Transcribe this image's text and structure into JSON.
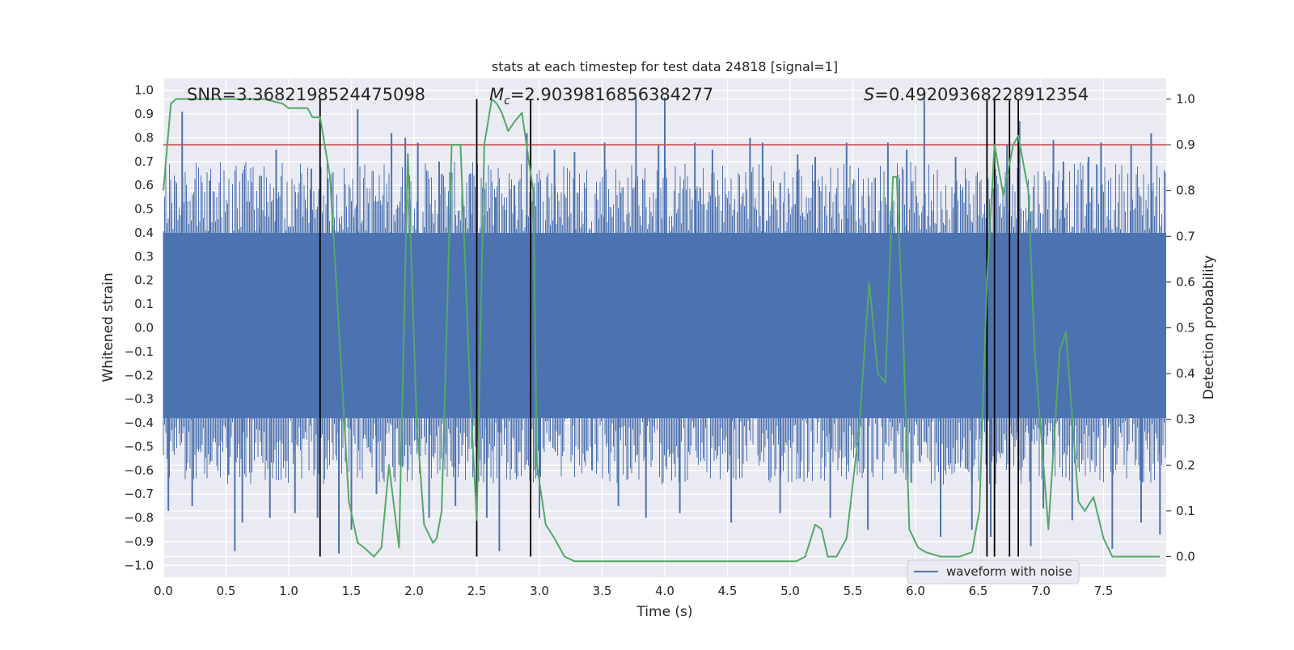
{
  "chart_data": {
    "type": "line",
    "title": "stats at each timestep for test data 24818 [signal=1]",
    "xlabel": "Time (s)",
    "ylabel_left": "Whitened strain",
    "ylabel_right": "Detection probability",
    "xlim": [
      0,
      8
    ],
    "ylim_left": [
      -1.05,
      1.05
    ],
    "ylim_right": [
      -0.045,
      1.045
    ],
    "x_ticks": [
      "0.0",
      "0.5",
      "1.0",
      "1.5",
      "2.0",
      "2.5",
      "3.0",
      "3.5",
      "4.0",
      "4.5",
      "5.0",
      "5.5",
      "6.0",
      "6.5",
      "7.0",
      "7.5"
    ],
    "y_ticks_left": [
      "1.0",
      "0.9",
      "0.8",
      "0.7",
      "0.6",
      "0.5",
      "0.4",
      "0.3",
      "0.2",
      "0.1",
      "0.0",
      "−0.1",
      "−0.2",
      "−0.3",
      "−0.4",
      "−0.5",
      "−0.6",
      "−0.7",
      "−0.8",
      "−0.9",
      "−1.0"
    ],
    "y_ticks_right": [
      "1.0",
      "0.9",
      "0.8",
      "0.7",
      "0.6",
      "0.5",
      "0.4",
      "0.3",
      "0.2",
      "0.1",
      "0.0"
    ],
    "grid": true,
    "legend": {
      "position": "lower-right",
      "entries": [
        "waveform with noise"
      ]
    },
    "annotations": {
      "snr": "SNR=3.3682198524475098",
      "mc": "=2.9039816856384277",
      "mc_symbol": "M",
      "mc_sub": "c",
      "s": "=0.49209368228912354",
      "s_symbol": "S"
    },
    "threshold": {
      "value": 0.9,
      "axis": "right",
      "color": "#c44e52"
    },
    "vertical_markers": [
      1.25,
      2.5,
      2.93,
      6.57,
      6.63,
      6.75,
      6.82
    ],
    "waveform": {
      "name": "waveform with noise",
      "color": "#4c72b0",
      "dense_band": [
        -0.38,
        0.4
      ],
      "spikes": [
        [
          0.04,
          -0.77
        ],
        [
          0.15,
          0.91
        ],
        [
          0.23,
          -0.75
        ],
        [
          0.37,
          0.62
        ],
        [
          0.52,
          -0.62
        ],
        [
          0.57,
          -0.94
        ],
        [
          0.63,
          -0.82
        ],
        [
          0.77,
          0.64
        ],
        [
          0.85,
          -0.8
        ],
        [
          0.9,
          0.75
        ],
        [
          1.05,
          -0.78
        ],
        [
          1.18,
          0.67
        ],
        [
          1.23,
          -0.8
        ],
        [
          1.31,
          0.63
        ],
        [
          1.4,
          -0.95
        ],
        [
          1.5,
          -0.85
        ],
        [
          1.55,
          0.92
        ],
        [
          1.7,
          -0.7
        ],
        [
          1.82,
          0.82
        ],
        [
          1.93,
          0.8
        ],
        [
          2.03,
          0.78
        ],
        [
          2.12,
          -0.8
        ],
        [
          2.2,
          0.7
        ],
        [
          2.33,
          -0.75
        ],
        [
          2.45,
          0.65
        ],
        [
          2.58,
          -0.8
        ],
        [
          2.65,
          0.55
        ],
        [
          2.68,
          -0.94
        ],
        [
          2.8,
          0.6
        ],
        [
          2.9,
          0.82
        ],
        [
          3.0,
          -0.8
        ],
        [
          3.12,
          0.75
        ],
        [
          3.28,
          0.74
        ],
        [
          3.42,
          -0.6
        ],
        [
          3.52,
          0.78
        ],
        [
          3.63,
          -0.75
        ],
        [
          3.77,
          0.97
        ],
        [
          3.85,
          -0.8
        ],
        [
          3.95,
          0.77
        ],
        [
          4.0,
          0.97
        ],
        [
          4.12,
          -0.78
        ],
        [
          4.24,
          0.78
        ],
        [
          4.38,
          0.75
        ],
        [
          4.53,
          -0.82
        ],
        [
          4.68,
          0.8
        ],
        [
          4.78,
          0.78
        ],
        [
          4.92,
          -0.78
        ],
        [
          5.06,
          0.73
        ],
        [
          5.2,
          0.72
        ],
        [
          5.32,
          -0.8
        ],
        [
          5.45,
          0.78
        ],
        [
          5.62,
          -0.85
        ],
        [
          5.78,
          0.78
        ],
        [
          5.93,
          0.75
        ],
        [
          6.07,
          0.97
        ],
        [
          6.2,
          -0.88
        ],
        [
          6.32,
          0.72
        ],
        [
          6.45,
          -0.85
        ],
        [
          6.6,
          -0.88
        ],
        [
          6.73,
          0.77
        ],
        [
          6.83,
          0.87
        ],
        [
          6.92,
          -0.92
        ],
        [
          7.02,
          -0.76
        ],
        [
          7.1,
          0.79
        ],
        [
          7.18,
          0.7
        ],
        [
          7.25,
          -0.81
        ],
        [
          7.38,
          0.72
        ],
        [
          7.48,
          0.78
        ],
        [
          7.57,
          -0.93
        ],
        [
          7.72,
          0.77
        ],
        [
          7.8,
          -0.82
        ],
        [
          7.88,
          0.82
        ],
        [
          7.95,
          -0.87
        ]
      ]
    },
    "probability": {
      "name": "detection probability",
      "color": "#55a868",
      "x": [
        0,
        0.06,
        0.1,
        0.3,
        0.5,
        0.8,
        0.95,
        1.0,
        1.07,
        1.15,
        1.19,
        1.25,
        1.33,
        1.4,
        1.48,
        1.55,
        1.6,
        1.68,
        1.74,
        1.8,
        1.88,
        1.95,
        2.02,
        2.08,
        2.15,
        2.18,
        2.22,
        2.3,
        2.37,
        2.45,
        2.5,
        2.56,
        2.62,
        2.66,
        2.7,
        2.75,
        2.8,
        2.86,
        2.95,
        2.98,
        3.05,
        3.12,
        3.2,
        3.28,
        3.32,
        3.4,
        3.6,
        3.8,
        4.0,
        4.2,
        4.5,
        4.7,
        4.9,
        5.05,
        5.12,
        5.2,
        5.25,
        5.3,
        5.37,
        5.45,
        5.55,
        5.63,
        5.7,
        5.76,
        5.82,
        5.85,
        5.9,
        5.95,
        6.02,
        6.08,
        6.2,
        6.35,
        6.45,
        6.51,
        6.57,
        6.63,
        6.7,
        6.78,
        6.82,
        6.9,
        6.95,
        7.06,
        7.15,
        7.2,
        7.3,
        7.35,
        7.42,
        7.5,
        7.57,
        7.7,
        7.8,
        7.95
      ],
      "y": [
        0.8,
        0.99,
        1.0,
        1.0,
        1.0,
        1.0,
        0.99,
        0.98,
        0.98,
        0.98,
        0.96,
        0.96,
        0.83,
        0.5,
        0.12,
        0.03,
        0.02,
        0.0,
        0.02,
        0.2,
        0.02,
        0.88,
        0.3,
        0.07,
        0.03,
        0.04,
        0.1,
        0.9,
        0.9,
        0.34,
        0.08,
        0.9,
        1.0,
        0.99,
        0.97,
        0.93,
        0.95,
        0.97,
        0.8,
        0.2,
        0.07,
        0.04,
        0.0,
        -0.01,
        -0.01,
        -0.01,
        -0.01,
        -0.01,
        -0.01,
        -0.01,
        -0.01,
        -0.01,
        -0.01,
        -0.01,
        0.0,
        0.07,
        0.06,
        0.0,
        0.0,
        0.04,
        0.28,
        0.6,
        0.4,
        0.38,
        0.83,
        0.83,
        0.5,
        0.06,
        0.02,
        0.01,
        0.0,
        0.0,
        0.01,
        0.1,
        0.6,
        0.9,
        0.79,
        0.9,
        0.92,
        0.8,
        0.45,
        0.06,
        0.45,
        0.49,
        0.12,
        0.1,
        0.13,
        0.04,
        0.0,
        0.0,
        0.0,
        0.0
      ]
    }
  }
}
